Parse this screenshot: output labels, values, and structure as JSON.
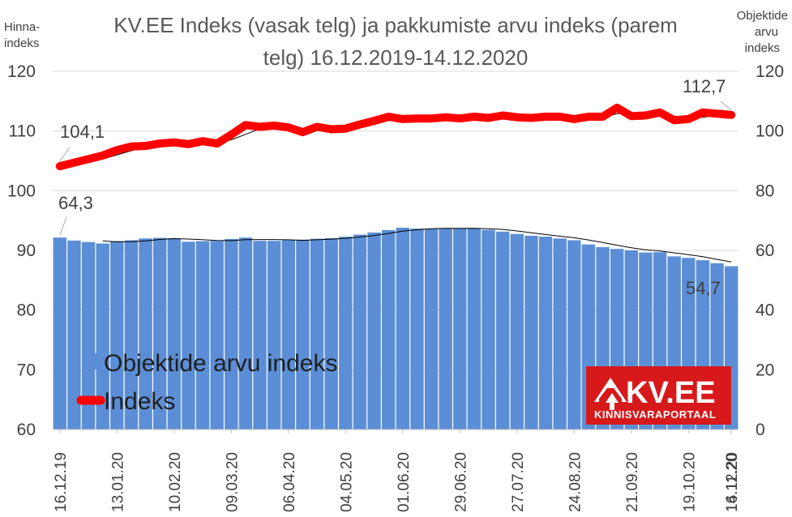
{
  "chart_data": {
    "type": "bar+line",
    "title_lines": [
      "KV.EE Indeks (vasak telg) ja pakkumiste arvu indeks (parem",
      "telg) 16.12.2019-14.12.2020"
    ],
    "left_axis_title": [
      "Hinna-",
      "indeks"
    ],
    "right_axis_title": [
      "Objektide",
      "arvu",
      "indeks"
    ],
    "left_axis": {
      "min": 60,
      "max": 120,
      "ticks": [
        60,
        70,
        80,
        90,
        100,
        110,
        120
      ]
    },
    "right_axis": {
      "min": 0,
      "max": 120,
      "ticks": [
        0,
        20,
        40,
        60,
        80,
        100,
        120
      ]
    },
    "x_tick_labels": [
      "16.12.19",
      "13.01.20",
      "10.02.20",
      "09.03.20",
      "06.04.20",
      "04.05.20",
      "01.06.20",
      "29.06.20",
      "27.07.20",
      "24.08.20",
      "21.09.20",
      "19.10.20",
      "16.11.20",
      "14.12.20"
    ],
    "series": [
      {
        "name": "Objektide arvu indeks",
        "type": "bar",
        "axis": "right",
        "color": "#5b8ed6",
        "values": [
          64.3,
          63.3,
          62.8,
          62.3,
          63.1,
          63.4,
          64.0,
          64.2,
          64.1,
          62.9,
          63.1,
          63.2,
          63.8,
          64.3,
          63.2,
          63.2,
          63.5,
          63.6,
          63.9,
          64.1,
          64.6,
          65.3,
          66.0,
          66.8,
          67.6,
          67.3,
          67.3,
          67.3,
          67.5,
          67.4,
          66.9,
          66.3,
          65.5,
          64.9,
          64.6,
          64.0,
          63.4,
          62.0,
          61.1,
          60.5,
          60.0,
          59.3,
          59.4,
          58.0,
          57.5,
          56.7,
          55.7,
          54.7
        ]
      },
      {
        "name": "Indeks",
        "type": "line",
        "axis": "left",
        "color": "#ff0000",
        "values": [
          104.1,
          104.7,
          105.3,
          105.9,
          106.8,
          107.4,
          107.5,
          107.9,
          108.1,
          107.8,
          108.3,
          107.9,
          109.4,
          111.0,
          110.7,
          110.9,
          110.6,
          109.8,
          110.7,
          110.3,
          110.4,
          111.1,
          111.7,
          112.4,
          112.0,
          112.1,
          112.1,
          112.3,
          112.1,
          112.4,
          112.2,
          112.6,
          112.3,
          112.2,
          112.4,
          112.4,
          112.0,
          112.4,
          112.4,
          113.9,
          112.5,
          112.6,
          113.1,
          111.8,
          112.0,
          113.1,
          112.9,
          112.7
        ]
      }
    ],
    "data_labels": {
      "line_first": "104,1",
      "line_last": "112,7",
      "bar_first": "64,3",
      "bar_last": "54,7"
    },
    "legend": {
      "placement": "inside-bottom-left",
      "items": [
        "Objektide arvu indeks",
        "Indeks"
      ]
    },
    "grid": true
  },
  "logo": {
    "brand": "KV.EE",
    "tagline": "KINNISVARAPORTAAL",
    "background": "#d7191c"
  }
}
